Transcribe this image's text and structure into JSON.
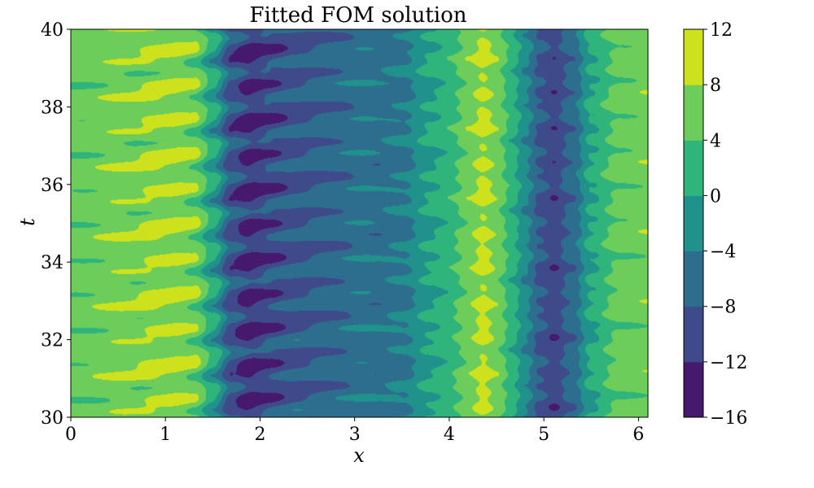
{
  "chart_data": {
    "type": "heatmap",
    "title": "Fitted FOM solution",
    "xlabel": "x",
    "ylabel": "t",
    "xlim": [
      0,
      6.1
    ],
    "ylim": [
      30,
      40
    ],
    "x_ticks": [
      "0",
      "1",
      "2",
      "3",
      "4",
      "5",
      "6"
    ],
    "y_ticks": [
      "30",
      "32",
      "34",
      "36",
      "38",
      "40"
    ],
    "colorbar": {
      "levels": [
        -16,
        -12,
        -8,
        -4,
        0,
        4,
        8,
        12
      ],
      "tick_labels": [
        "−16",
        "−12",
        "−8",
        "−4",
        "0",
        "4",
        "8",
        "12"
      ],
      "colors": [
        "#46186e",
        "#3f4a8a",
        "#2d6e8e",
        "#21918c",
        "#2fb47c",
        "#6ccd5a",
        "#cde11d"
      ]
    },
    "field": {
      "description_values": {
        "profile_x": [
          0,
          0.3,
          0.6,
          0.9,
          1.1,
          1.3,
          1.5,
          1.7,
          1.9,
          2.1,
          2.4,
          2.8,
          3.2,
          3.5,
          3.8,
          4.0,
          4.2,
          4.35,
          4.5,
          4.65,
          4.8,
          4.95,
          5.1,
          5.3,
          5.5,
          5.8,
          6.1
        ],
        "profile_u": [
          5.5,
          6.0,
          6.5,
          7.5,
          8.0,
          6.5,
          0.0,
          -9.0,
          -12.0,
          -10.0,
          -8.0,
          -6.5,
          -5.5,
          -4.5,
          0.0,
          2.5,
          6.0,
          9.0,
          6.5,
          2.0,
          -3.0,
          -8.0,
          -10.5,
          -6.5,
          0.5,
          5.5,
          6.0
        ]
      }
    },
    "grid": false
  }
}
